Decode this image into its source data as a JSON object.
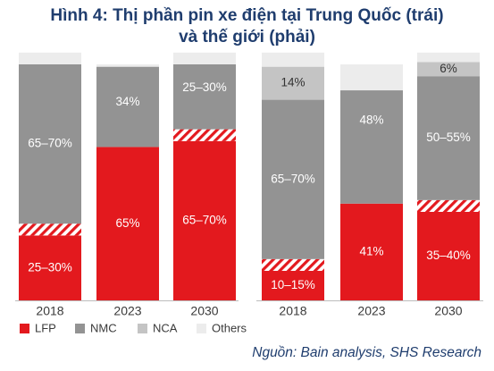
{
  "title": {
    "line1": "Hình 4: Thị phần pin xe điện tại Trung Quốc (trái)",
    "line2": "và thế giới (phải)"
  },
  "source": "Nguồn: Bain analysis, SHS Research",
  "colors": {
    "LFP": "#e3191e",
    "NMC": "#939393",
    "NCA": "#c4c4c4",
    "Others": "#ececec",
    "hatch": "#e3191e",
    "text_light": "#ffffff",
    "text_dark": "#333333",
    "axis_text": "#3a3a3a"
  },
  "chart_data": [
    {
      "type": "bar",
      "stacked": true,
      "title": "",
      "categories": [
        "2018",
        "2023",
        "2030"
      ],
      "series": [
        {
          "name": "LFP",
          "values": [
            27.5,
            65,
            67.5
          ],
          "labels": [
            "25–30%",
            "65%",
            "65–70%"
          ]
        },
        {
          "name": "NMC",
          "values": [
            67.5,
            34,
            27.5
          ],
          "labels": [
            "65–70%",
            "34%",
            "25–30%"
          ]
        },
        {
          "name": "Others",
          "values": [
            5,
            1,
            5
          ],
          "labels": [
            "",
            "",
            ""
          ]
        }
      ],
      "uncertainty_band": [
        5,
        0,
        5
      ],
      "ylim": [
        0,
        100
      ]
    },
    {
      "type": "bar",
      "stacked": true,
      "title": "",
      "categories": [
        "2018",
        "2023",
        "2030"
      ],
      "series": [
        {
          "name": "LFP",
          "values": [
            12.5,
            41,
            37.5
          ],
          "labels": [
            "10–15%",
            "41%",
            "35–40%"
          ]
        },
        {
          "name": "NMC",
          "values": [
            67.5,
            48,
            52.5
          ],
          "labels": [
            "65–70%",
            "48%",
            "50–55%"
          ]
        },
        {
          "name": "NCA",
          "values": [
            14,
            0,
            6
          ],
          "labels": [
            "14%",
            "0%",
            "6%"
          ]
        },
        {
          "name": "Others",
          "values": [
            6,
            11,
            4
          ],
          "labels": [
            "",
            "",
            ""
          ]
        }
      ],
      "uncertainty_band": [
        5,
        0,
        5
      ],
      "ylim": [
        0,
        100
      ]
    }
  ],
  "legend": {
    "position": "bottom-left",
    "items": [
      {
        "key": "LFP",
        "label": "LFP"
      },
      {
        "key": "NMC",
        "label": "NMC"
      },
      {
        "key": "NCA",
        "label": "NCA"
      },
      {
        "key": "Others",
        "label": "Others"
      }
    ]
  }
}
